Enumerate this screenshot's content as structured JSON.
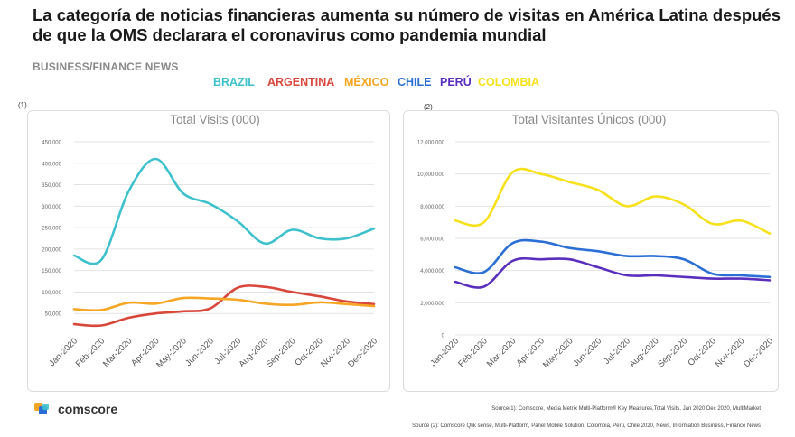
{
  "title": "La categoría de noticias financieras aumenta su número de visitas en América Latina después de que la OMS declarara el coronavirus como pandemia mundial",
  "subtitle": "BUSINESS/FINANCE NEWS",
  "colors": {
    "brazil": "#3ec1cd",
    "argentina": "#d9473b",
    "mexico": "#f5a623",
    "chile": "#2b6fd6",
    "peru": "#5b2fbe",
    "colombia": "#f7e11c",
    "grid": "#e3e3e3",
    "axis_text": "#666666"
  },
  "legend": [
    {
      "name": "BRAZIL",
      "color": "#3ec1cd"
    },
    {
      "name": "ARGENTINA",
      "color": "#d9473b"
    },
    {
      "name": "MÉXICO",
      "color": "#f5a623"
    },
    {
      "name": "CHILE",
      "color": "#2b6fd6"
    },
    {
      "name": "PERÚ",
      "color": "#5b2fbe"
    },
    {
      "name": "COLOMBIA",
      "color": "#f7e11c"
    }
  ],
  "chart_data": [
    {
      "type": "line",
      "panel_label": "(1)",
      "title": "Total Visits (000)",
      "categories": [
        "Jan-2020",
        "Feb-2020",
        "Mar-2020",
        "Apr-2020",
        "May-2020",
        "Jun-2020",
        "Jul-2020",
        "Aug-2020",
        "Sep-2020",
        "Oct-2020",
        "Nov-2020",
        "Dec-2020"
      ],
      "yticks": [
        "450,000",
        "400,000",
        "350,000",
        "300,000",
        "250,000",
        "200,000",
        "150,000",
        "100,000",
        "50,000"
      ],
      "ylim": [
        0,
        450000
      ],
      "grid": true,
      "series": [
        {
          "name": "BRAZIL",
          "color": "#3ec1cd",
          "values": [
            185000,
            175000,
            335000,
            410000,
            330000,
            305000,
            265000,
            213000,
            245000,
            225000,
            225000,
            248000
          ]
        },
        {
          "name": "ARGENTINA",
          "color": "#d9473b",
          "values": [
            25000,
            22000,
            40000,
            50000,
            55000,
            62000,
            110000,
            112000,
            100000,
            90000,
            78000,
            72000
          ]
        },
        {
          "name": "MÉXICO",
          "color": "#f5a623",
          "values": [
            60000,
            58000,
            75000,
            73000,
            86000,
            85000,
            82000,
            73000,
            70000,
            76000,
            72000,
            67000
          ]
        }
      ]
    },
    {
      "type": "line",
      "panel_label": "(2)",
      "title": "Total Visitantes Únicos (000)",
      "categories": [
        "Jan-2020",
        "Feb-2020",
        "Mar-2020",
        "Apr-2020",
        "May-2020",
        "Jun-2020",
        "Jul-2020",
        "Aug-2020",
        "Sep-2020",
        "Oct-2020",
        "Nov-2020",
        "Dec-2020"
      ],
      "yticks": [
        "12,000,000",
        "10,000,000",
        "8,000,000",
        "6,000,000",
        "4,000,000",
        "2,000,000",
        "0"
      ],
      "ylim": [
        0,
        12000000
      ],
      "grid": true,
      "series": [
        {
          "name": "COLOMBIA",
          "color": "#f7e11c",
          "values": [
            7100000,
            7000000,
            10100000,
            10000000,
            9500000,
            9000000,
            8000000,
            8600000,
            8100000,
            6900000,
            7100000,
            6300000
          ]
        },
        {
          "name": "CHILE",
          "color": "#2b6fd6",
          "values": [
            4200000,
            3900000,
            5700000,
            5800000,
            5400000,
            5200000,
            4900000,
            4900000,
            4700000,
            3800000,
            3700000,
            3600000
          ]
        },
        {
          "name": "PERÚ",
          "color": "#5b2fbe",
          "values": [
            3300000,
            3000000,
            4600000,
            4700000,
            4700000,
            4200000,
            3700000,
            3700000,
            3600000,
            3500000,
            3500000,
            3400000
          ]
        }
      ]
    }
  ],
  "brand": {
    "name": "comscore",
    "logo_icon": "comscore-logo-icon"
  },
  "sources": [
    "Source(1): Comscore, Media Metrix Multi-Platform® Key Measures,Total Visits, Jan 2020 Dec 2020, MultiMarket",
    "Source (2): Comscore Qlik sense, Multi-Platform, Panel Mobile Solution, Colombia, Perú, Chile 2020, News, Information Business, Finance News"
  ]
}
